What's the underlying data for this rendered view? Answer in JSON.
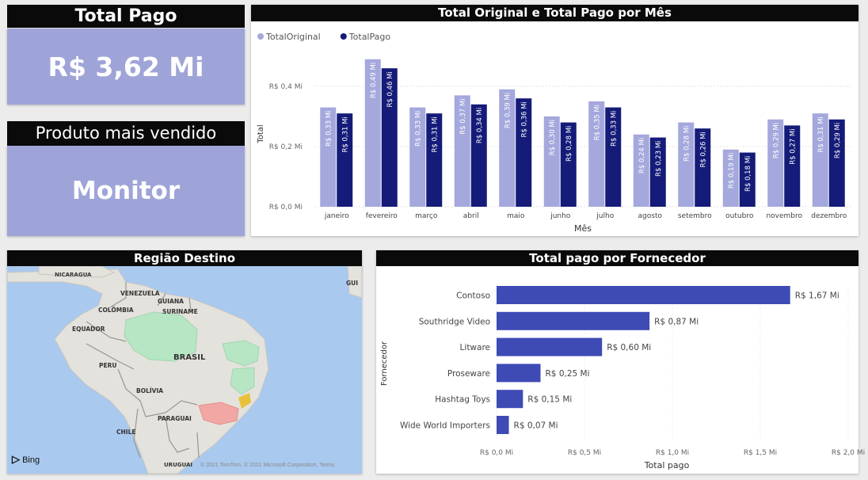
{
  "kpi_total": {
    "title": "Total Pago",
    "value": "R$ 3,62 Mi"
  },
  "kpi_produto": {
    "title": "Produto mais vendido",
    "value": "Monitor"
  },
  "map": {
    "title": "Região Destino",
    "labels": [
      "NICARAGUA",
      "VENEZUELA",
      "GUIANA",
      "SURINAME",
      "COLÔMBIA",
      "EQUADOR",
      "BRASIL",
      "PERU",
      "BOLÍVIA",
      "PARAGUAI",
      "CHILE",
      "URUGUAI",
      "GUI"
    ],
    "logo": "Bing",
    "attribution": "© 2021 TomTom, © 2021 Microsoft Corporation, Terms",
    "colors": {
      "water": "#a9c9ef",
      "land": "#e4e2dc",
      "highlight_green": "#b6e6c4",
      "highlight_red": "#f1a7a3",
      "highlight_yellow": "#e8c13b"
    }
  },
  "chart_data": [
    {
      "type": "bar",
      "title": "Total Original e Total Pago por Mês",
      "xlabel": "Mês",
      "ylabel": "Total",
      "ylim": [
        0,
        0.5
      ],
      "y_ticks": [
        0,
        0.2,
        0.4
      ],
      "y_tick_labels": [
        "R$ 0,0 Mi",
        "R$ 0,2 Mi",
        "R$ 0,4 Mi"
      ],
      "legend_position": "top-left",
      "categories": [
        "janeiro",
        "fevereiro",
        "março",
        "abril",
        "maio",
        "junho",
        "julho",
        "agosto",
        "setembro",
        "outubro",
        "novembro",
        "dezembro"
      ],
      "series": [
        {
          "name": "TotalOriginal",
          "color": "#a4a8dc",
          "values": [
            0.33,
            0.49,
            0.33,
            0.37,
            0.39,
            0.3,
            0.35,
            0.24,
            0.28,
            0.19,
            0.29,
            0.31
          ],
          "labels": [
            "R$ 0,33 Mi",
            "R$ 0,49 Mi",
            "R$ 0,33 Mi",
            "R$ 0,37 Mi",
            "R$ 0,39 Mi",
            "R$ 0,30 Mi",
            "R$ 0,35 Mi",
            "R$ 0,24 Mi",
            "R$ 0,28 Mi",
            "R$ 0,19 Mi",
            "R$ 0,29 Mi",
            "R$ 0,31 Mi"
          ]
        },
        {
          "name": "TotalPago",
          "color": "#141b78",
          "values": [
            0.31,
            0.46,
            0.31,
            0.34,
            0.36,
            0.28,
            0.33,
            0.23,
            0.26,
            0.18,
            0.27,
            0.29
          ],
          "labels": [
            "R$ 0,31 Mi",
            "R$ 0,46 Mi",
            "R$ 0,31 Mi",
            "R$ 0,34 Mi",
            "R$ 0,36 Mi",
            "R$ 0,28 Mi",
            "R$ 0,33 Mi",
            "R$ 0,23 Mi",
            "R$ 0,26 Mi",
            "R$ 0,18 Mi",
            "R$ 0,27 Mi",
            "R$ 0,29 Mi"
          ]
        }
      ]
    },
    {
      "type": "bar",
      "orientation": "horizontal",
      "title": "Total pago por Fornecedor",
      "xlabel": "Total pago",
      "ylabel": "Fornecedor",
      "xlim": [
        0,
        2.0
      ],
      "x_ticks": [
        0,
        0.5,
        1.0,
        1.5,
        2.0
      ],
      "x_tick_labels": [
        "R$ 0,0 Mi",
        "R$ 0,5 Mi",
        "R$ 1,0 Mi",
        "R$ 1,5 Mi",
        "R$ 2,0 Mi"
      ],
      "color": "#3f4bb5",
      "categories": [
        "Contoso",
        "Southridge Video",
        "Litware",
        "Proseware",
        "Hashtag Toys",
        "Wide World Importers"
      ],
      "values": [
        1.67,
        0.87,
        0.6,
        0.25,
        0.15,
        0.07
      ],
      "labels": [
        "R$ 1,67 Mi",
        "R$ 0,87 Mi",
        "R$ 0,60 Mi",
        "R$ 0,25 Mi",
        "R$ 0,15 Mi",
        "R$ 0,07 Mi"
      ]
    }
  ]
}
